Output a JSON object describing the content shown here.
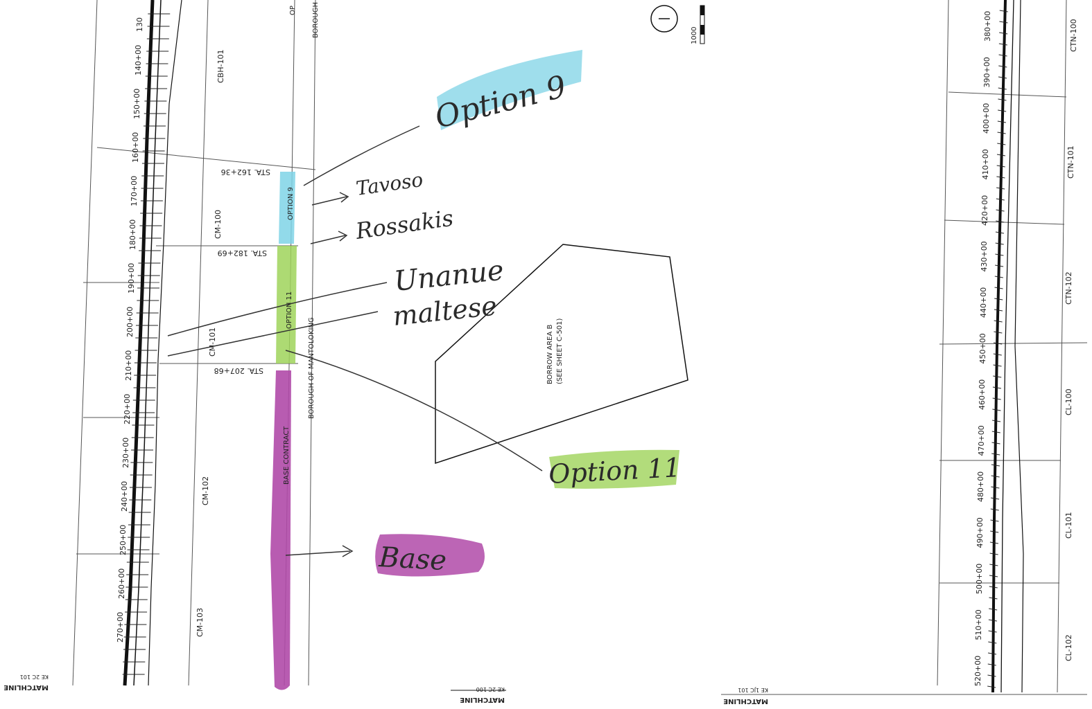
{
  "sheet_left": {
    "stations": [
      "130",
      "140+00",
      "150+00",
      "160+00",
      "170+00",
      "180+00",
      "190+00",
      "200+00",
      "210+00",
      "220+00",
      "230+00",
      "240+00",
      "250+00",
      "260+00",
      "270+00"
    ],
    "sheet_labels": [
      "CBH-101",
      "CM-100",
      "CM-101",
      "CM-102",
      "CM-103"
    ],
    "callouts": [
      "STA. 162+36",
      "STA. 182+69",
      "STA. 207+68"
    ],
    "contract_labels": [
      "OPTION 9",
      "OPTION 11",
      "BASE CONTRACT"
    ],
    "top_fragments": [
      "OP",
      "BOROUGH"
    ],
    "borough_label": "BOROUGH OF MANTOLOKING",
    "borrow_area_line1": "BORROW AREA B",
    "borrow_area_line2": "(SEE SHEET C-501)",
    "scale_value": "1000",
    "matchline_left": "MATCHLINE",
    "matchline_left_ref": "KE 2C 101",
    "matchline_right": "MATCHLINE",
    "matchline_right_ref": "KE 2C 100"
  },
  "sheet_right": {
    "stations": [
      "380+00",
      "390+00",
      "400+00",
      "410+00",
      "420+00",
      "430+00",
      "440+00",
      "450+00",
      "460+00",
      "470+00",
      "480+00",
      "490+00",
      "500+00",
      "510+00",
      "520+00"
    ],
    "sheet_labels": [
      "CTN-100",
      "CTN-101",
      "CTN-102",
      "CL-100",
      "CL-101",
      "CL-102"
    ],
    "matchline": "MATCHLINE",
    "matchline_ref": "KE 1JC 101"
  },
  "annotations": {
    "option9": "Option 9",
    "tavoso": "Tavoso",
    "rossakis": "Rossakis",
    "unanue": "Unanue",
    "maltese": "maltese",
    "option11": "Option 11",
    "base": "Base"
  },
  "colors": {
    "option9_highlight": "#7fd3e6",
    "option11_highlight": "#9fd35a",
    "base_highlight": "#b04aa8",
    "ink": "#2a2a2a"
  }
}
